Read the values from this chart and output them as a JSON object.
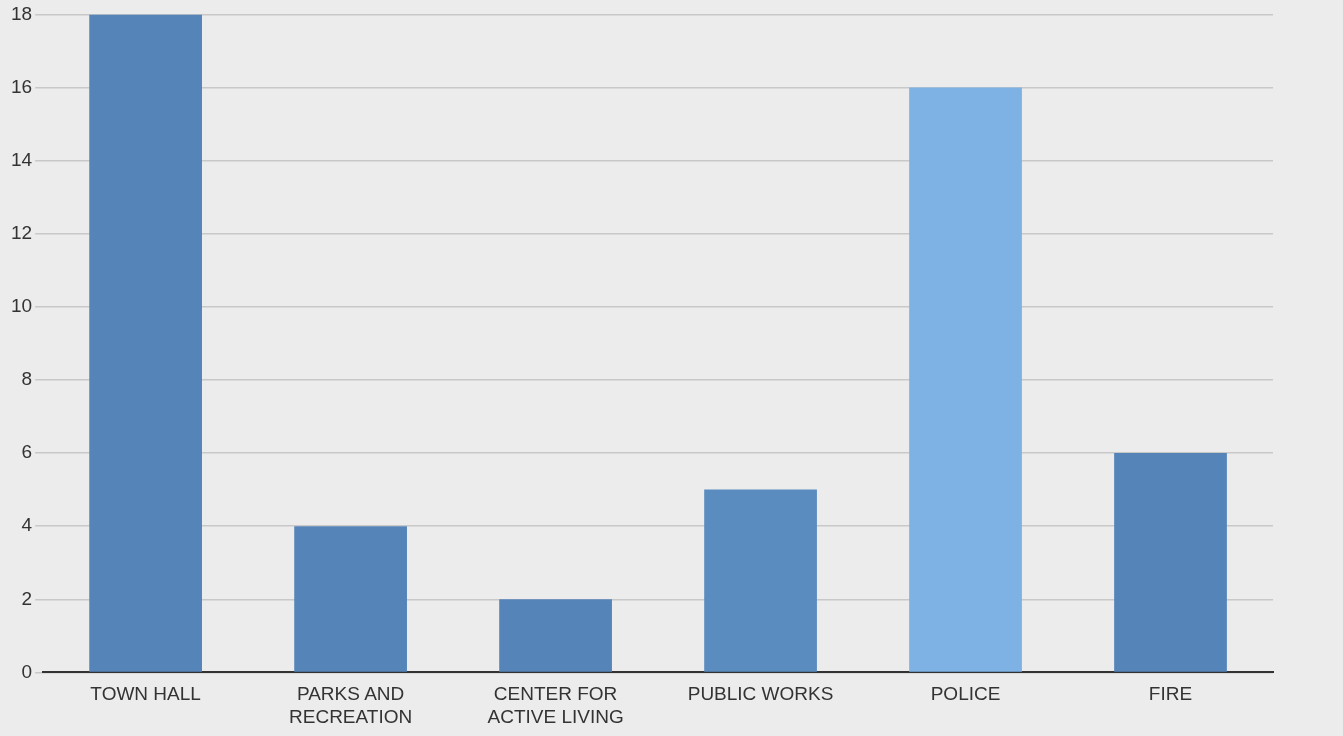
{
  "chart_data": {
    "type": "bar",
    "categories": [
      "TOWN HALL",
      "PARKS AND RECREATION",
      "CENTER FOR ACTIVE LIVING",
      "PUBLIC WORKS",
      "POLICE",
      "FIRE"
    ],
    "values": [
      18,
      4,
      2,
      5,
      16,
      6
    ],
    "colors": [
      "#5585b8",
      "#5585b8",
      "#5585b8",
      "#5a8cc0",
      "#7eb2e4",
      "#5585b8"
    ],
    "ylim": [
      0,
      18
    ],
    "yticks": [
      0,
      2,
      4,
      6,
      8,
      10,
      12,
      14,
      16,
      18
    ],
    "grid": "y",
    "legend": false
  }
}
